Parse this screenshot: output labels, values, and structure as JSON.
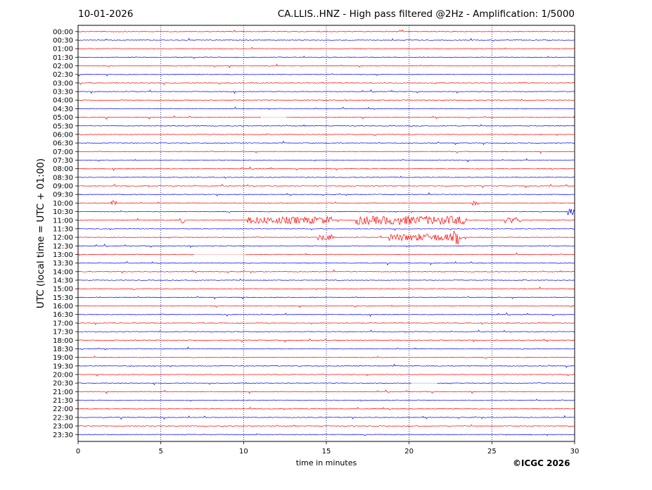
{
  "header": {
    "date": "10-01-2026",
    "title": "CA.LLIS..HNZ - High pass filtered @2Hz - Amplification: 1/5000"
  },
  "footer": {
    "copyright": "©ICGC 2026"
  },
  "chart_data": {
    "type": "line",
    "title": "CA.LLIS..HNZ - High pass filtered @2Hz - Amplification: 1/5000",
    "xlabel": "time in minutes",
    "ylabel": "UTC (local time = UTC + 01:00)",
    "xlim": [
      0,
      30
    ],
    "xticks": [
      0,
      5,
      10,
      15,
      20,
      25,
      30
    ],
    "grid": "vertical dotted at every 5 minutes",
    "row_colors": [
      "#ff0000",
      "#0000ff"
    ],
    "row_labels": [
      "00:00",
      "00:30",
      "01:00",
      "01:30",
      "02:00",
      "02:30",
      "03:00",
      "03:30",
      "04:00",
      "04:30",
      "05:00",
      "05:30",
      "06:00",
      "06:30",
      "07:00",
      "07:30",
      "08:00",
      "08:30",
      "09:00",
      "09:30",
      "10:00",
      "10:30",
      "11:00",
      "11:30",
      "12:00",
      "12:30",
      "13:00",
      "13:30",
      "14:00",
      "14:30",
      "15:00",
      "15:30",
      "16:00",
      "16:30",
      "17:00",
      "17:30",
      "18:00",
      "18:30",
      "19:00",
      "19:30",
      "20:00",
      "20:30",
      "21:00",
      "21:30",
      "22:00",
      "22:30",
      "23:00",
      "23:30"
    ],
    "events": [
      {
        "row": "10:00",
        "from_min": 2.0,
        "to_min": 2.3,
        "amplitude": 4
      },
      {
        "row": "10:00",
        "from_min": 23.8,
        "to_min": 24.2,
        "amplitude": 3
      },
      {
        "row": "10:30",
        "from_min": 29.6,
        "to_min": 30.0,
        "amplitude": 5
      },
      {
        "row": "11:00",
        "from_min": 6.1,
        "to_min": 6.4,
        "amplitude": 5
      },
      {
        "row": "11:00",
        "from_min": 10.2,
        "to_min": 15.4,
        "amplitude": 5
      },
      {
        "row": "11:00",
        "from_min": 16.8,
        "to_min": 23.5,
        "amplitude": 6
      },
      {
        "row": "11:00",
        "from_min": 25.8,
        "to_min": 26.8,
        "amplitude": 4
      },
      {
        "row": "12:00",
        "from_min": 14.5,
        "to_min": 15.5,
        "amplitude": 4
      },
      {
        "row": "12:00",
        "from_min": 18.8,
        "to_min": 23.2,
        "amplitude": 5
      },
      {
        "row": "12:00",
        "from_min": 22.7,
        "to_min": 23.0,
        "amplitude": 10
      }
    ],
    "gaps": [
      {
        "row": "05:00",
        "from_min": 11.1,
        "to_min": 12.6
      },
      {
        "row": "13:00",
        "from_min": 7.0,
        "to_min": 10.1
      },
      {
        "row": "20:30",
        "from_min": 20.2,
        "to_min": 21.7
      }
    ]
  }
}
